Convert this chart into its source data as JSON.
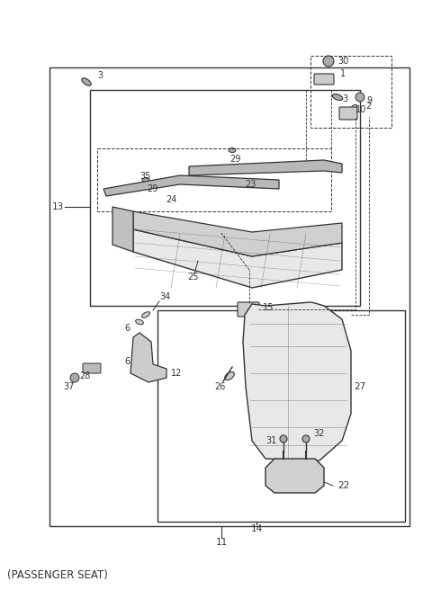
{
  "title": "(PASSENGER SEAT)",
  "bg_color": "#ffffff",
  "line_color": "#333333",
  "figsize": [
    4.8,
    6.56
  ],
  "dpi": 100
}
